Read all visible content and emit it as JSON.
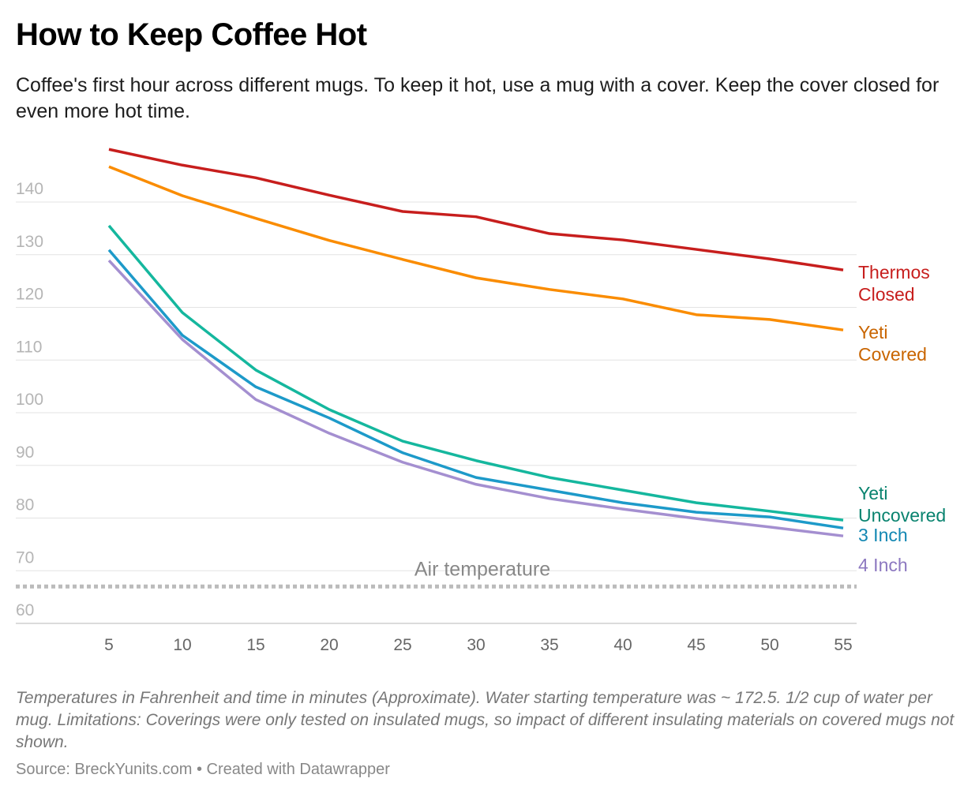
{
  "chart_data": {
    "type": "line",
    "title": "How to Keep Coffee Hot",
    "subtitle": "Coffee's first hour across different mugs. To keep it hot, use a mug with a cover. Keep the cover closed for even more hot time.",
    "x": [
      5,
      10,
      15,
      20,
      25,
      30,
      35,
      40,
      45,
      50,
      55
    ],
    "xlim": [
      5,
      55
    ],
    "ylim": [
      60,
      150
    ],
    "yticks": [
      60,
      70,
      80,
      90,
      100,
      110,
      120,
      130,
      140
    ],
    "grid": true,
    "series": [
      {
        "name": "Thermos Closed",
        "label_lines": [
          "Thermos",
          "Closed"
        ],
        "color": "#c71e1d",
        "label_color": "#c71e1d",
        "values": [
          150.0,
          147.0,
          144.6,
          141.3,
          138.2,
          137.2,
          134.0,
          132.8,
          131.0,
          129.2,
          127.1
        ]
      },
      {
        "name": "Yeti Covered",
        "label_lines": [
          "Yeti",
          "Covered"
        ],
        "color": "#fa8c00",
        "label_color": "#c96500",
        "values": [
          146.7,
          141.2,
          136.9,
          132.7,
          129.1,
          125.6,
          123.4,
          121.6,
          118.6,
          117.7,
          115.7
        ]
      },
      {
        "name": "Yeti Uncovered",
        "label_lines": [
          "Yeti",
          "Uncovered"
        ],
        "color": "#15b79e",
        "label_color": "#09836f",
        "values": [
          135.5,
          119.0,
          108.1,
          100.6,
          94.6,
          90.9,
          87.7,
          85.3,
          82.9,
          81.3,
          79.6
        ]
      },
      {
        "name": "3 Inch",
        "label_lines": [
          "3 Inch"
        ],
        "color": "#1d9ac9",
        "label_color": "#1287b3",
        "values": [
          130.9,
          114.7,
          104.9,
          99.0,
          92.4,
          87.7,
          85.3,
          82.9,
          81.1,
          80.2,
          78.1
        ]
      },
      {
        "name": "4 Inch",
        "label_lines": [
          "4 Inch"
        ],
        "color": "#a48fd0",
        "label_color": "#8c78c0",
        "values": [
          128.9,
          113.9,
          102.5,
          96.1,
          90.6,
          86.4,
          83.7,
          81.7,
          79.9,
          78.3,
          76.6
        ]
      }
    ],
    "annotation": {
      "text": "Air temperature",
      "value": 67,
      "color": "#bbbbbb"
    }
  },
  "notes": "Temperatures in Fahrenheit and time in minutes (Approximate). Water starting temperature was ~ 172.5. 1/2 cup of water per mug. Limitations: Coverings were only tested on insulated mugs, so impact of different insulating materials on covered mugs not shown.",
  "source": "Source: BreckYunits.com • Created with Datawrapper"
}
